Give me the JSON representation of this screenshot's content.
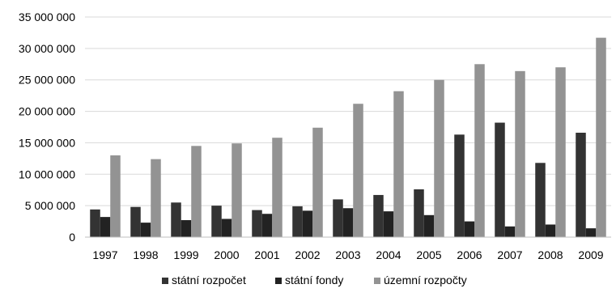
{
  "chart_data": {
    "type": "bar",
    "categories": [
      "1997",
      "1998",
      "1999",
      "2000",
      "2001",
      "2002",
      "2003",
      "2004",
      "2005",
      "2006",
      "2007",
      "2008",
      "2009"
    ],
    "series": [
      {
        "name": "státní rozpočet",
        "color": "#333333",
        "values": [
          4400000,
          4800000,
          5500000,
          5000000,
          4300000,
          4900000,
          6000000,
          6700000,
          7600000,
          16300000,
          18200000,
          11800000,
          16600000
        ]
      },
      {
        "name": "státní fondy",
        "color": "#222222",
        "values": [
          3200000,
          2300000,
          2700000,
          2900000,
          3700000,
          4200000,
          4600000,
          4100000,
          3500000,
          2500000,
          1700000,
          2000000,
          1400000
        ]
      },
      {
        "name": "územní rozpočty",
        "color": "#939393",
        "values": [
          13000000,
          12400000,
          14500000,
          14900000,
          15800000,
          17400000,
          21200000,
          23200000,
          25000000,
          27500000,
          26400000,
          27000000,
          31700000
        ]
      }
    ],
    "ylim": [
      0,
      35000000
    ],
    "yticks": [
      0,
      5000000,
      10000000,
      15000000,
      20000000,
      25000000,
      30000000,
      35000000
    ],
    "ytick_labels": [
      "0",
      "5 000 000",
      "10 000 000",
      "15 000 000",
      "20 000 000",
      "25 000 000",
      "30 000 000",
      "35 000 000"
    ],
    "grid": true,
    "legend_position": "bottom"
  }
}
